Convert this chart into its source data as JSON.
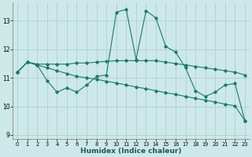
{
  "xlabel": "Humidex (Indice chaleur)",
  "bg_color": "#cde8e8",
  "grid_color": "#a8cccc",
  "line_color": "#1a7a6e",
  "xlim": [
    -0.5,
    23.5
  ],
  "ylim": [
    8.85,
    13.65
  ],
  "yticks": [
    9,
    10,
    11,
    12,
    13
  ],
  "xticks": [
    0,
    1,
    2,
    3,
    4,
    5,
    6,
    7,
    8,
    9,
    10,
    11,
    12,
    13,
    14,
    15,
    16,
    17,
    18,
    19,
    20,
    21,
    22,
    23
  ],
  "line_zigzag_x": [
    0,
    1,
    2,
    3,
    4,
    5,
    6,
    7,
    8,
    9,
    10,
    11,
    12,
    13,
    14,
    15,
    16,
    17,
    18,
    19,
    20,
    21,
    22,
    23
  ],
  "line_zigzag_y": [
    11.2,
    11.55,
    11.45,
    10.9,
    10.5,
    10.65,
    10.5,
    10.75,
    11.05,
    11.1,
    13.3,
    13.4,
    11.65,
    13.35,
    13.1,
    12.1,
    11.9,
    11.35,
    10.55,
    10.35,
    10.5,
    10.75,
    10.8,
    9.5
  ],
  "line_upper_x": [
    0,
    1,
    2,
    3,
    4,
    5,
    6,
    7,
    8,
    9,
    10,
    11,
    12,
    13,
    14,
    15,
    16,
    17,
    18,
    19,
    20,
    21,
    22,
    23
  ],
  "line_upper_y": [
    11.2,
    11.55,
    11.48,
    11.48,
    11.48,
    11.48,
    11.52,
    11.52,
    11.55,
    11.58,
    11.6,
    11.6,
    11.6,
    11.6,
    11.6,
    11.55,
    11.5,
    11.45,
    11.4,
    11.35,
    11.3,
    11.25,
    11.2,
    11.1
  ],
  "line_lower_x": [
    0,
    1,
    2,
    3,
    4,
    5,
    6,
    7,
    8,
    9,
    10,
    11,
    12,
    13,
    14,
    15,
    16,
    17,
    18,
    19,
    20,
    21,
    22,
    23
  ],
  "line_lower_y": [
    11.2,
    11.55,
    11.45,
    11.35,
    11.25,
    11.15,
    11.05,
    11.0,
    10.95,
    10.88,
    10.82,
    10.75,
    10.68,
    10.62,
    10.55,
    10.48,
    10.42,
    10.35,
    10.28,
    10.22,
    10.15,
    10.08,
    10.02,
    9.5
  ]
}
